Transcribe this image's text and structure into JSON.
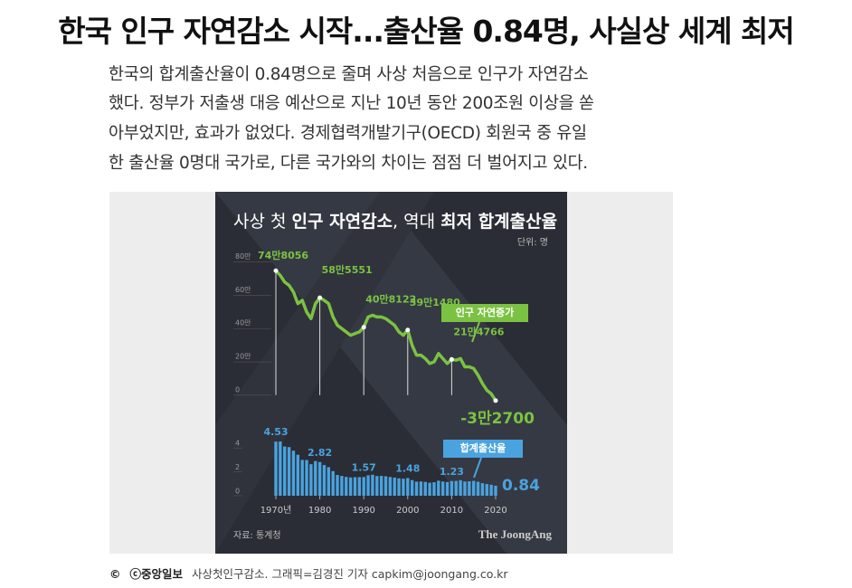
{
  "header": {
    "title": "한국 인구 자연감소 시작...출산율 0.84명, 사실상 세계 최저"
  },
  "body": {
    "lines": [
      "한국의 합계출산율이 0.84명으로 줄며 사상 처음으로 인구가 자연감소",
      "했다. 정부가 저출생 대응 예산으로 지난 10년 동안 200조원 이상을 쏟",
      "아부었지만, 효과가 없었다. 경제협력개발기구(OECD) 회원국 중 유일",
      "한 출산율 0명대 국가로, 다른 국가와의 차이는 점점 더 벌어지고 있다."
    ]
  },
  "infographic": {
    "title_parts": [
      {
        "text": "사상 첫 ",
        "bold": false
      },
      {
        "text": "인구 자연감소",
        "bold": true
      },
      {
        "text": ", 역대 ",
        "bold": false
      },
      {
        "text": "최저 합계출산율",
        "bold": true
      }
    ],
    "unit": "단위: 명",
    "source": "자료: 통계청",
    "logo": "The JoongAng"
  },
  "chart_data": [
    {
      "type": "line",
      "x": [
        1970,
        1971,
        1972,
        1973,
        1974,
        1975,
        1976,
        1977,
        1978,
        1979,
        1980,
        1981,
        1982,
        1983,
        1984,
        1985,
        1986,
        1987,
        1988,
        1989,
        1990,
        1991,
        1992,
        1993,
        1994,
        1995,
        1996,
        1997,
        1998,
        1999,
        2000,
        2001,
        2002,
        2003,
        2004,
        2005,
        2006,
        2007,
        2008,
        2009,
        2010,
        2011,
        2012,
        2013,
        2014,
        2015,
        2016,
        2017,
        2018,
        2019,
        2020
      ],
      "xlim": [
        1963,
        2027
      ],
      "ylim": [
        -5,
        82
      ],
      "yticks": [
        0,
        {
          "value": 20,
          "label": "20만"
        },
        {
          "value": 40,
          "label": "40만"
        },
        {
          "value": 60,
          "label": "60만"
        },
        {
          "value": 80,
          "label": "80만"
        }
      ],
      "series": [
        {
          "name": "인구 자연증가",
          "color": "#7cc242",
          "values": [
            74.8056,
            72,
            68,
            66,
            62,
            55,
            57,
            50,
            46,
            55,
            58.5551,
            57,
            55,
            47,
            42,
            40,
            38,
            36,
            37,
            38,
            40.8122,
            47,
            48,
            47,
            47,
            46,
            44,
            42,
            38,
            36,
            39.148,
            30,
            24,
            24,
            22,
            19,
            20,
            25,
            22,
            19,
            21.4766,
            21,
            22,
            17,
            17,
            16,
            12,
            7,
            3,
            0.8,
            -3.27
          ],
          "value_labels": [
            "74만8056",
            null,
            null,
            null,
            null,
            null,
            null,
            null,
            null,
            null,
            "58만5551",
            null,
            null,
            null,
            null,
            null,
            null,
            null,
            null,
            null,
            "40만8122",
            null,
            null,
            null,
            null,
            null,
            null,
            null,
            null,
            null,
            "39만1480",
            null,
            null,
            null,
            null,
            null,
            null,
            null,
            null,
            null,
            "21만4766",
            null,
            null,
            null,
            null,
            null,
            null,
            null,
            null,
            null,
            "-3만2700"
          ]
        }
      ]
    },
    {
      "type": "bar",
      "x": [
        1970,
        1971,
        1972,
        1973,
        1974,
        1975,
        1976,
        1977,
        1978,
        1979,
        1980,
        1981,
        1982,
        1983,
        1984,
        1985,
        1986,
        1987,
        1988,
        1989,
        1990,
        1991,
        1992,
        1993,
        1994,
        1995,
        1996,
        1997,
        1998,
        1999,
        2000,
        2001,
        2002,
        2003,
        2004,
        2005,
        2006,
        2007,
        2008,
        2009,
        2010,
        2011,
        2012,
        2013,
        2014,
        2015,
        2016,
        2017,
        2018,
        2019,
        2020
      ],
      "xlim": [
        1963,
        2027
      ],
      "ylim": [
        0,
        5
      ],
      "yticks": [
        0,
        2,
        4
      ],
      "xticks": [
        {
          "value": 1970,
          "label": "1970년"
        },
        1980,
        1990,
        2000,
        2010,
        2020
      ],
      "series": [
        {
          "name": "합계출산율",
          "color": "#4aa3df",
          "values": [
            4.53,
            4.54,
            4.12,
            4.07,
            3.77,
            3.43,
            3.0,
            2.99,
            2.64,
            2.9,
            2.82,
            2.57,
            2.39,
            2.06,
            1.74,
            1.66,
            1.58,
            1.53,
            1.55,
            1.56,
            1.57,
            1.71,
            1.76,
            1.65,
            1.66,
            1.63,
            1.57,
            1.52,
            1.46,
            1.43,
            1.48,
            1.31,
            1.18,
            1.19,
            1.16,
            1.09,
            1.13,
            1.26,
            1.19,
            1.15,
            1.23,
            1.24,
            1.3,
            1.19,
            1.21,
            1.24,
            1.17,
            1.05,
            0.98,
            0.92,
            0.84
          ],
          "value_labels": [
            "4.53",
            null,
            null,
            null,
            null,
            null,
            null,
            null,
            null,
            null,
            "2.82",
            null,
            null,
            null,
            null,
            null,
            null,
            null,
            null,
            null,
            "1.57",
            null,
            null,
            null,
            null,
            null,
            null,
            null,
            null,
            null,
            "1.48",
            null,
            null,
            null,
            null,
            null,
            null,
            null,
            null,
            null,
            "1.23",
            null,
            null,
            null,
            null,
            null,
            null,
            null,
            null,
            null,
            "0.84"
          ]
        }
      ]
    }
  ],
  "caption": {
    "icon": "©",
    "credit": "ⓒ중앙일보",
    "text": "사상첫인구감소. 그래픽=김경진 기자 capkim@joongang.co.kr"
  }
}
